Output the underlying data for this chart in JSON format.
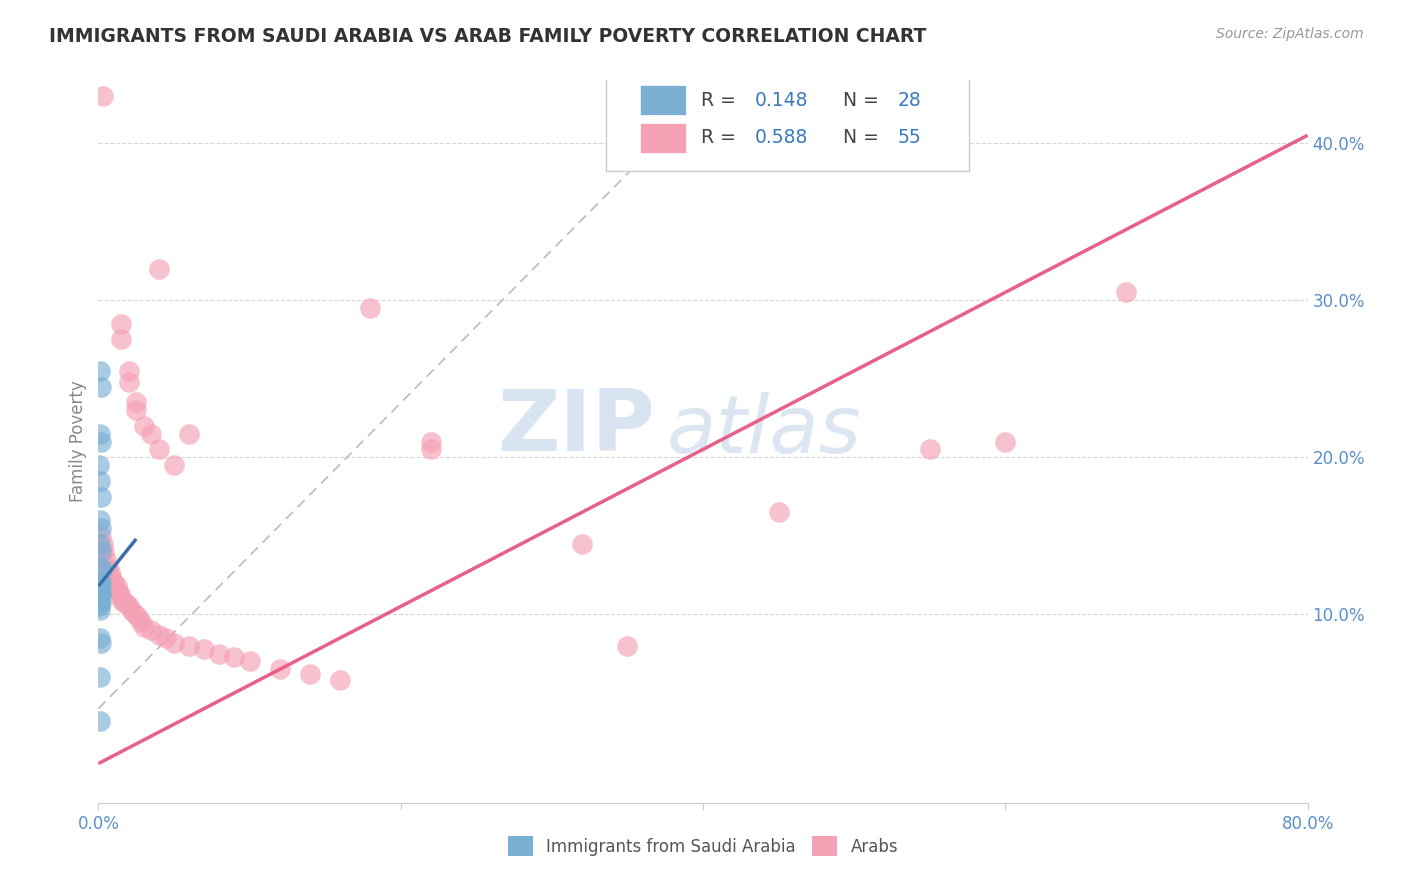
{
  "title": "IMMIGRANTS FROM SAUDI ARABIA VS ARAB FAMILY POVERTY CORRELATION CHART",
  "source": "Source: ZipAtlas.com",
  "ylabel": "Family Poverty",
  "xlim": [
    0.0,
    0.8
  ],
  "ylim": [
    -0.02,
    0.44
  ],
  "blue_color": "#7bafd4",
  "pink_color": "#f4a0b5",
  "blue_line_color": "#3a6faa",
  "pink_line_color": "#e8608a",
  "watermark_zip": "ZIP",
  "watermark_atlas": "atlas",
  "pink_line_x": [
    0.0,
    0.8
  ],
  "pink_line_y": [
    0.005,
    0.405
  ],
  "blue_line_x": [
    0.0,
    0.025
  ],
  "blue_line_y": [
    0.118,
    0.148
  ],
  "dash_line_x": [
    0.0,
    0.37
  ],
  "dash_line_y": [
    0.04,
    0.4
  ],
  "blue_dots": [
    [
      0.001,
      0.255
    ],
    [
      0.002,
      0.245
    ],
    [
      0.001,
      0.215
    ],
    [
      0.002,
      0.21
    ],
    [
      0.0005,
      0.195
    ],
    [
      0.001,
      0.185
    ],
    [
      0.002,
      0.175
    ],
    [
      0.001,
      0.16
    ],
    [
      0.0015,
      0.155
    ],
    [
      0.001,
      0.145
    ],
    [
      0.0015,
      0.14
    ],
    [
      0.002,
      0.13
    ],
    [
      0.0025,
      0.128
    ],
    [
      0.001,
      0.122
    ],
    [
      0.0015,
      0.12
    ],
    [
      0.002,
      0.118
    ],
    [
      0.001,
      0.115
    ],
    [
      0.0015,
      0.113
    ],
    [
      0.002,
      0.112
    ],
    [
      0.0005,
      0.11
    ],
    [
      0.001,
      0.108
    ],
    [
      0.0015,
      0.107
    ],
    [
      0.0005,
      0.105
    ],
    [
      0.001,
      0.103
    ],
    [
      0.001,
      0.085
    ],
    [
      0.002,
      0.082
    ],
    [
      0.001,
      0.06
    ],
    [
      0.001,
      0.032
    ]
  ],
  "pink_dots": [
    [
      0.003,
      0.43
    ],
    [
      0.04,
      0.32
    ],
    [
      0.015,
      0.285
    ],
    [
      0.015,
      0.275
    ],
    [
      0.02,
      0.255
    ],
    [
      0.02,
      0.248
    ],
    [
      0.025,
      0.235
    ],
    [
      0.025,
      0.23
    ],
    [
      0.03,
      0.22
    ],
    [
      0.035,
      0.215
    ],
    [
      0.04,
      0.205
    ],
    [
      0.05,
      0.195
    ],
    [
      0.06,
      0.215
    ],
    [
      0.18,
      0.295
    ],
    [
      0.22,
      0.21
    ],
    [
      0.22,
      0.205
    ],
    [
      0.32,
      0.145
    ],
    [
      0.35,
      0.08
    ],
    [
      0.45,
      0.165
    ],
    [
      0.55,
      0.205
    ],
    [
      0.6,
      0.21
    ],
    [
      0.68,
      0.305
    ],
    [
      0.002,
      0.15
    ],
    [
      0.003,
      0.145
    ],
    [
      0.004,
      0.14
    ],
    [
      0.005,
      0.135
    ],
    [
      0.006,
      0.13
    ],
    [
      0.007,
      0.128
    ],
    [
      0.008,
      0.125
    ],
    [
      0.009,
      0.122
    ],
    [
      0.01,
      0.12
    ],
    [
      0.012,
      0.118
    ],
    [
      0.013,
      0.115
    ],
    [
      0.014,
      0.113
    ],
    [
      0.015,
      0.11
    ],
    [
      0.016,
      0.108
    ],
    [
      0.018,
      0.107
    ],
    [
      0.02,
      0.105
    ],
    [
      0.022,
      0.102
    ],
    [
      0.024,
      0.1
    ],
    [
      0.026,
      0.098
    ],
    [
      0.028,
      0.095
    ],
    [
      0.03,
      0.092
    ],
    [
      0.035,
      0.09
    ],
    [
      0.04,
      0.087
    ],
    [
      0.045,
      0.085
    ],
    [
      0.05,
      0.082
    ],
    [
      0.06,
      0.08
    ],
    [
      0.07,
      0.078
    ],
    [
      0.08,
      0.075
    ],
    [
      0.09,
      0.073
    ],
    [
      0.1,
      0.07
    ],
    [
      0.12,
      0.065
    ],
    [
      0.14,
      0.062
    ],
    [
      0.16,
      0.058
    ]
  ]
}
